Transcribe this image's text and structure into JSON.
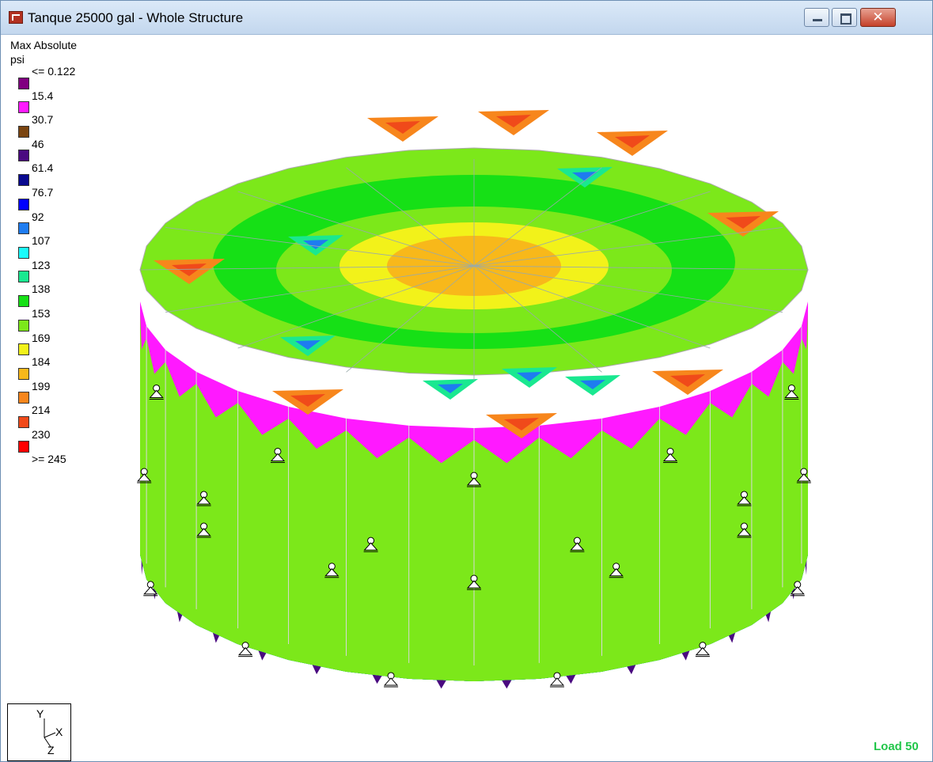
{
  "window": {
    "title": "Tanque 25000 gal - Whole Structure",
    "close_symbol": "✕"
  },
  "legend": {
    "title": "Max Absolute",
    "unit": "psi",
    "items": [
      {
        "label": "<= 0.122",
        "color": ""
      },
      {
        "label": "15.4",
        "color": "#800080"
      },
      {
        "label": "30.7",
        "color": "#ff19ff"
      },
      {
        "label": "46",
        "color": "#7a4410"
      },
      {
        "label": "61.4",
        "color": "#4a0a80"
      },
      {
        "label": "76.7",
        "color": "#0a0a90"
      },
      {
        "label": "92",
        "color": "#0000ff"
      },
      {
        "label": "107",
        "color": "#1e7cf0"
      },
      {
        "label": "123",
        "color": "#1afafa"
      },
      {
        "label": "138",
        "color": "#1ae890"
      },
      {
        "label": "153",
        "color": "#16e016"
      },
      {
        "label": "169",
        "color": "#7ce81a"
      },
      {
        "label": "184",
        "color": "#f2f21a"
      },
      {
        "label": "199",
        "color": "#f8b81a"
      },
      {
        "label": "214",
        "color": "#f7861c"
      },
      {
        "label": "230",
        "color": "#f04a1a"
      },
      {
        "label": ">= 245",
        "color": "#ff0000"
      }
    ]
  },
  "axis_indicator": {
    "y": "Y",
    "x": "X",
    "z": "Z"
  },
  "status": {
    "load": "Load 50"
  }
}
